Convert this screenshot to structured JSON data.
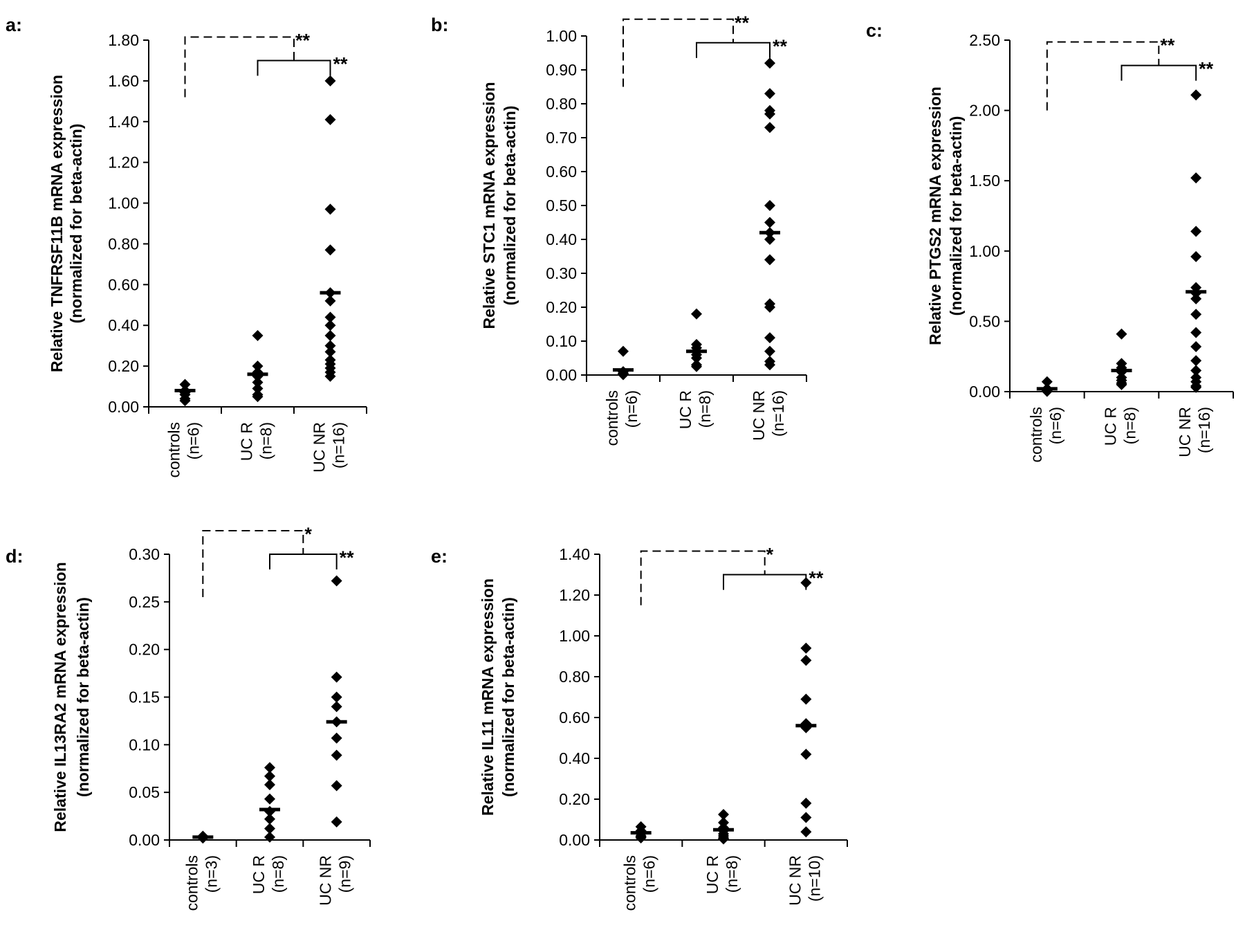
{
  "chart_data": [
    {
      "panel_label": "a:",
      "type": "scatter",
      "ylabel_line1": "Relative TNFRSF11B mRNA expression",
      "ylabel_line2": "(normalized for beta-actin)",
      "ylim": [
        0,
        1.8
      ],
      "yticks": [
        "0.00",
        "0.20",
        "0.40",
        "0.60",
        "0.80",
        "1.00",
        "1.20",
        "1.40",
        "1.60",
        "1.80"
      ],
      "categories": [
        {
          "name": "controls",
          "n": "(n=6)"
        },
        {
          "name": "UC R",
          "n": "(n=8)"
        },
        {
          "name": "UC NR",
          "n": "(n=16)"
        }
      ],
      "points": [
        [
          0.11,
          0.08,
          0.07,
          0.06,
          0.04,
          0.03
        ],
        [
          0.35,
          0.2,
          0.17,
          0.15,
          0.12,
          0.09,
          0.06,
          0.05
        ],
        [
          1.6,
          1.41,
          0.97,
          0.77,
          0.56,
          0.52,
          0.44,
          0.4,
          0.35,
          0.3,
          0.27,
          0.23,
          0.21,
          0.19,
          0.17,
          0.15
        ]
      ],
      "means": [
        0.08,
        0.16,
        0.56
      ],
      "sig_dashed": "**",
      "sig_solid": "**",
      "dashed_bottom": 1.52
    },
    {
      "panel_label": "b:",
      "type": "scatter",
      "ylabel_line1": "Relative STC1 mRNA expression",
      "ylabel_line2": "(normalized for beta-actin)",
      "ylim": [
        0,
        1.0
      ],
      "yticks": [
        "0.00",
        "0.10",
        "0.20",
        "0.30",
        "0.40",
        "0.50",
        "0.60",
        "0.70",
        "0.80",
        "0.90",
        "1.00"
      ],
      "categories": [
        {
          "name": "controls",
          "n": "(n=6)"
        },
        {
          "name": "UC R",
          "n": "(n=8)"
        },
        {
          "name": "UC NR",
          "n": "(n=16)"
        }
      ],
      "points": [
        [
          0.07,
          0.01,
          0.005,
          0.003,
          0.002,
          0.001
        ],
        [
          0.18,
          0.09,
          0.08,
          0.07,
          0.06,
          0.05,
          0.03,
          0.025
        ],
        [
          0.92,
          0.83,
          0.78,
          0.77,
          0.73,
          0.5,
          0.45,
          0.42,
          0.4,
          0.34,
          0.21,
          0.2,
          0.11,
          0.07,
          0.04,
          0.03
        ]
      ],
      "means": [
        0.015,
        0.07,
        0.42
      ],
      "sig_dashed": "**",
      "sig_solid": "**",
      "dashed_bottom": 0.85
    },
    {
      "panel_label": "c:",
      "type": "scatter",
      "ylabel_line1": "Relative PTGS2 mRNA expression",
      "ylabel_line2": "(normalized for beta-actin)",
      "ylim": [
        0,
        2.5
      ],
      "yticks": [
        "0.00",
        "0.50",
        "1.00",
        "1.50",
        "2.00",
        "2.50"
      ],
      "categories": [
        {
          "name": "controls",
          "n": "(n=6)"
        },
        {
          "name": "UC R",
          "n": "(n=8)"
        },
        {
          "name": "UC NR",
          "n": "(n=16)"
        }
      ],
      "points": [
        [
          0.07,
          0.02,
          0.01,
          0.005,
          0.003,
          0.002
        ],
        [
          0.41,
          0.2,
          0.17,
          0.14,
          0.1,
          0.08,
          0.06,
          0.05
        ],
        [
          2.11,
          1.52,
          1.14,
          0.96,
          0.74,
          0.7,
          0.66,
          0.55,
          0.42,
          0.32,
          0.22,
          0.15,
          0.1,
          0.07,
          0.04,
          0.03
        ]
      ],
      "means": [
        0.02,
        0.15,
        0.71
      ],
      "sig_dashed": "**",
      "sig_solid": "**",
      "dashed_bottom": 2.0
    },
    {
      "panel_label": "d:",
      "type": "scatter",
      "ylabel_line1": "Relative IL13RA2 mRNA expression",
      "ylabel_line2": "(normalized for beta-actin)",
      "ylim": [
        0,
        0.3
      ],
      "yticks": [
        "0.00",
        "0.05",
        "0.10",
        "0.15",
        "0.20",
        "0.25",
        "0.30"
      ],
      "categories": [
        {
          "name": "controls",
          "n": "(n=3)"
        },
        {
          "name": "UC R",
          "n": "(n=8)"
        },
        {
          "name": "UC NR",
          "n": "(n=9)"
        }
      ],
      "points": [
        [
          0.004,
          0.003,
          0.002
        ],
        [
          0.076,
          0.067,
          0.058,
          0.043,
          0.03,
          0.022,
          0.012,
          0.003
        ],
        [
          0.272,
          0.171,
          0.15,
          0.14,
          0.124,
          0.107,
          0.089,
          0.057,
          0.019
        ]
      ],
      "means": [
        0.003,
        0.032,
        0.124
      ],
      "sig_dashed": "*",
      "sig_solid": "**",
      "dashed_bottom": 0.255
    },
    {
      "panel_label": "e:",
      "type": "scatter",
      "ylabel_line1": "Relative IL11 mRNA expression",
      "ylabel_line2": "(normalized for beta-actin)",
      "ylim": [
        0,
        1.4
      ],
      "yticks": [
        "0.00",
        "0.20",
        "0.40",
        "0.60",
        "0.80",
        "1.00",
        "1.20",
        "1.40"
      ],
      "categories": [
        {
          "name": "controls",
          "n": "(n=6)"
        },
        {
          "name": "UC R",
          "n": "(n=8)"
        },
        {
          "name": "UC NR",
          "n": "(n=10)"
        }
      ],
      "points": [
        [
          0.065,
          0.045,
          0.03,
          0.02,
          0.015,
          0.01
        ],
        [
          0.125,
          0.085,
          0.06,
          0.045,
          0.03,
          0.02,
          0.01,
          0.005
        ],
        [
          1.26,
          0.94,
          0.88,
          0.69,
          0.57,
          0.55,
          0.42,
          0.18,
          0.11,
          0.04
        ]
      ],
      "means": [
        0.035,
        0.05,
        0.56
      ],
      "sig_dashed": "*",
      "sig_solid": "**",
      "dashed_bottom": 1.15
    }
  ]
}
